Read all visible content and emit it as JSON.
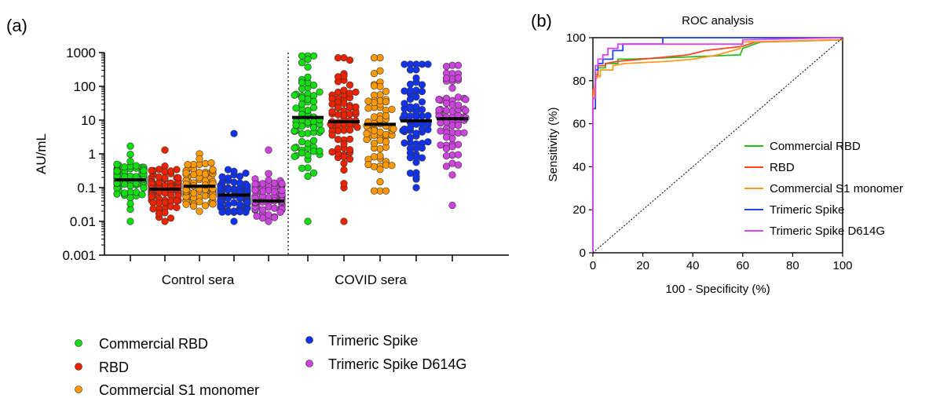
{
  "chart_data": [
    {
      "panel": "(a)",
      "type": "scatter",
      "ylabel": "AU/mL",
      "yscale": "log",
      "ylim": [
        0.001,
        1000
      ],
      "yticks": [
        "0.001",
        "0.01",
        "0.1",
        "1",
        "10",
        "100",
        "1000"
      ],
      "groups": [
        "Control sera",
        "COVID sera"
      ],
      "series": [
        {
          "name": "Commercial RBD",
          "color": "#11dd11",
          "medians": [
            0.17,
            12
          ],
          "ranges": [
            [
              0.01,
              1.7
            ],
            [
              0.01,
              800
            ]
          ]
        },
        {
          "name": "RBD",
          "color": "#ee2200",
          "medians": [
            0.09,
            9
          ],
          "ranges": [
            [
              0.01,
              1.3
            ],
            [
              0.01,
              700
            ]
          ]
        },
        {
          "name": "Commercial S1 monomer",
          "color": "#ff9900",
          "medians": [
            0.11,
            7.5
          ],
          "ranges": [
            [
              0.02,
              1.0
            ],
            [
              0.08,
              700
            ]
          ]
        },
        {
          "name": "Trimeric Spike",
          "color": "#1133ee",
          "medians": [
            0.06,
            9.5
          ],
          "ranges": [
            [
              0.01,
              4.0
            ],
            [
              0.1,
              450
            ]
          ]
        },
        {
          "name": "Trimeric Spike D614G",
          "color": "#cc44dd",
          "medians": [
            0.04,
            11
          ],
          "ranges": [
            [
              0.01,
              1.3
            ],
            [
              0.03,
              420
            ]
          ]
        }
      ]
    },
    {
      "panel": "(b)",
      "type": "line",
      "title": "ROC analysis",
      "xlabel": "100 - Specificity (%)",
      "ylabel": "Sensitivity (%)",
      "xlim": [
        0,
        100
      ],
      "ylim": [
        0,
        100
      ],
      "xticks": [
        "0",
        "20",
        "40",
        "60",
        "80",
        "100"
      ],
      "yticks": [
        "0",
        "20",
        "40",
        "60",
        "80",
        "100"
      ],
      "legend_position": "right",
      "series": [
        {
          "name": "Commercial RBD",
          "color": "#22bb22",
          "x": [
            0,
            0,
            1,
            1,
            2,
            2,
            5,
            5,
            10,
            10,
            15,
            15,
            59,
            60,
            67,
            100
          ],
          "y": [
            0,
            72,
            72,
            83,
            83,
            86,
            86,
            88,
            88,
            90,
            90,
            90,
            92,
            95,
            98,
            99
          ]
        },
        {
          "name": "RBD",
          "color": "#ff4422",
          "x": [
            0,
            0,
            1,
            1,
            2,
            2,
            5,
            5,
            10,
            20,
            38,
            45,
            60,
            65,
            100
          ],
          "y": [
            0,
            76,
            76,
            82,
            82,
            87,
            87,
            88,
            89,
            90,
            92,
            94,
            96,
            98,
            99
          ]
        },
        {
          "name": "Commercial S1 monomer",
          "color": "#ff9922",
          "x": [
            0,
            0,
            1,
            2,
            3,
            3,
            8,
            8,
            13,
            30,
            40,
            50,
            59,
            60,
            100
          ],
          "y": [
            0,
            70,
            80,
            82,
            82,
            85,
            85,
            87,
            88,
            89,
            90,
            92,
            95,
            98,
            99
          ]
        },
        {
          "name": "Trimeric Spike",
          "color": "#2244ee",
          "x": [
            0,
            0,
            1,
            1,
            2,
            2,
            4,
            4,
            8,
            8,
            12,
            12,
            28,
            28,
            100
          ],
          "y": [
            0,
            67,
            67,
            85,
            85,
            88,
            88,
            90,
            90,
            94,
            94,
            97,
            97,
            100,
            100
          ]
        },
        {
          "name": "Trimeric Spike D614G",
          "color": "#dd44ee",
          "x": [
            0,
            0,
            1,
            1,
            2,
            2,
            4,
            4,
            6,
            6,
            10,
            10,
            60,
            60,
            100
          ],
          "y": [
            0,
            72,
            72,
            87,
            87,
            90,
            90,
            92,
            92,
            95,
            95,
            97,
            97,
            99,
            100
          ]
        },
        {
          "name": "",
          "color": "#000000",
          "dashed": true,
          "x": [
            0,
            100
          ],
          "y": [
            0,
            100
          ]
        }
      ]
    }
  ]
}
